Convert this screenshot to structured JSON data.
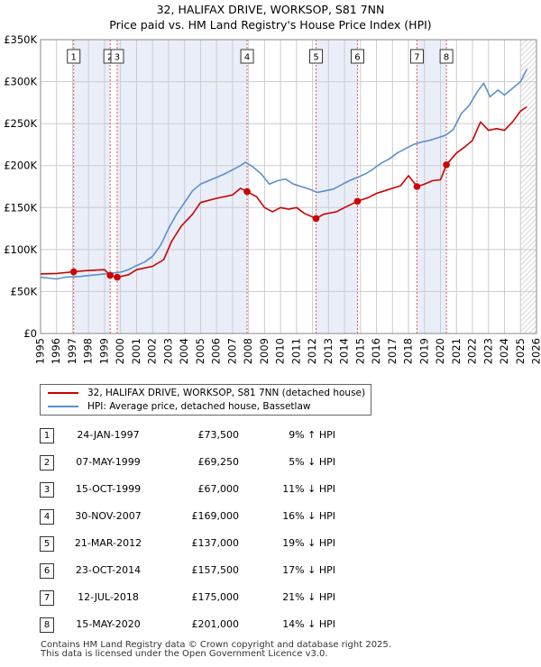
{
  "title_line1": "32, HALIFAX DRIVE, WORKSOP, S81 7NN",
  "title_line2": "Price paid vs. HM Land Registry's House Price Index (HPI)",
  "colors": {
    "property": "#cc0000",
    "hpi": "#5b8fd0",
    "shade": "#e9eef9",
    "grid": "#cccccc"
  },
  "legend": {
    "property": "32, HALIFAX DRIVE, WORKSOP, S81 7NN (detached house)",
    "hpi": "HPI: Average price, detached house, Bassetlaw"
  },
  "chart_data": {
    "type": "line",
    "xlim": [
      1995,
      2026
    ],
    "ylim": [
      0,
      350000
    ],
    "y_ticks": [
      0,
      50000,
      100000,
      150000,
      200000,
      250000,
      300000,
      350000
    ],
    "y_tick_labels": [
      "£0",
      "£50K",
      "£100K",
      "£150K",
      "£200K",
      "£250K",
      "£300K",
      "£350K"
    ],
    "x_ticks": [
      1995,
      1996,
      1997,
      1998,
      1999,
      2000,
      2001,
      2002,
      2003,
      2004,
      2005,
      2006,
      2007,
      2008,
      2009,
      2010,
      2011,
      2012,
      2013,
      2014,
      2015,
      2016,
      2017,
      2018,
      2019,
      2020,
      2021,
      2022,
      2023,
      2024,
      2025,
      2026
    ],
    "x_tick_labels": [
      "1995",
      "1996",
      "1997",
      "1998",
      "1999",
      "2000",
      "2001",
      "2002",
      "2003",
      "2004",
      "2005",
      "2006",
      "2007",
      "2008",
      "2009",
      "2010",
      "2011",
      "2012",
      "2013",
      "2014",
      "2015",
      "2016",
      "2017",
      "2018",
      "2019",
      "2020",
      "2021",
      "2022",
      "2023",
      "2024",
      "2025",
      "2026"
    ],
    "forecast_from": 2025.0,
    "shaded_ranges": [
      [
        1997.07,
        1999.35
      ],
      [
        1999.79,
        2007.91
      ],
      [
        2012.22,
        2014.81
      ],
      [
        2018.53,
        2020.37
      ]
    ],
    "series": [
      {
        "name": "32, HALIFAX DRIVE, WORKSOP, S81 7NN (detached house)",
        "points": [
          [
            1995.0,
            71000
          ],
          [
            1996.0,
            71500
          ],
          [
            1997.07,
            73500
          ],
          [
            1998.0,
            75000
          ],
          [
            1999.0,
            76000
          ],
          [
            1999.35,
            69250
          ],
          [
            1999.79,
            67000
          ],
          [
            2000.5,
            70000
          ],
          [
            2001.0,
            76000
          ],
          [
            2002.0,
            80000
          ],
          [
            2002.7,
            88000
          ],
          [
            2003.2,
            110000
          ],
          [
            2003.8,
            128000
          ],
          [
            2004.5,
            142000
          ],
          [
            2005.0,
            156000
          ],
          [
            2006.0,
            161000
          ],
          [
            2007.0,
            165000
          ],
          [
            2007.5,
            173000
          ],
          [
            2007.91,
            169000
          ],
          [
            2008.5,
            163000
          ],
          [
            2009.0,
            150000
          ],
          [
            2009.5,
            145000
          ],
          [
            2010.0,
            150000
          ],
          [
            2010.5,
            148000
          ],
          [
            2011.0,
            150000
          ],
          [
            2011.5,
            143000
          ],
          [
            2012.22,
            137000
          ],
          [
            2012.7,
            142000
          ],
          [
            2013.5,
            145000
          ],
          [
            2014.0,
            150000
          ],
          [
            2014.81,
            157500
          ],
          [
            2015.5,
            162000
          ],
          [
            2016.0,
            167000
          ],
          [
            2016.5,
            170000
          ],
          [
            2017.0,
            173000
          ],
          [
            2017.5,
            176000
          ],
          [
            2018.0,
            188000
          ],
          [
            2018.53,
            175000
          ],
          [
            2019.0,
            178000
          ],
          [
            2019.5,
            182000
          ],
          [
            2020.0,
            183000
          ],
          [
            2020.37,
            201000
          ],
          [
            2021.0,
            215000
          ],
          [
            2021.5,
            222000
          ],
          [
            2022.0,
            230000
          ],
          [
            2022.5,
            252000
          ],
          [
            2023.0,
            242000
          ],
          [
            2023.5,
            244000
          ],
          [
            2024.0,
            242000
          ],
          [
            2024.5,
            252000
          ],
          [
            2025.0,
            265000
          ],
          [
            2025.4,
            270000
          ]
        ]
      },
      {
        "name": "HPI: Average price, detached house, Bassetlaw",
        "points": [
          [
            1995.0,
            67000
          ],
          [
            1995.5,
            66000
          ],
          [
            1996.0,
            65000
          ],
          [
            1996.5,
            67000
          ],
          [
            1997.0,
            67500
          ],
          [
            1997.5,
            68000
          ],
          [
            1998.0,
            69000
          ],
          [
            1998.5,
            70000
          ],
          [
            1999.0,
            71000
          ],
          [
            1999.5,
            72000
          ],
          [
            2000.0,
            73000
          ],
          [
            2000.5,
            76000
          ],
          [
            2001.0,
            81000
          ],
          [
            2001.5,
            85000
          ],
          [
            2002.0,
            92000
          ],
          [
            2002.5,
            105000
          ],
          [
            2003.0,
            125000
          ],
          [
            2003.5,
            142000
          ],
          [
            2004.0,
            156000
          ],
          [
            2004.5,
            170000
          ],
          [
            2005.0,
            178000
          ],
          [
            2005.5,
            182000
          ],
          [
            2006.0,
            186000
          ],
          [
            2006.5,
            190000
          ],
          [
            2007.0,
            195000
          ],
          [
            2007.5,
            200000
          ],
          [
            2007.8,
            204000
          ],
          [
            2008.3,
            198000
          ],
          [
            2008.8,
            190000
          ],
          [
            2009.3,
            178000
          ],
          [
            2009.8,
            182000
          ],
          [
            2010.3,
            184000
          ],
          [
            2010.8,
            178000
          ],
          [
            2011.3,
            175000
          ],
          [
            2011.8,
            172000
          ],
          [
            2012.3,
            168000
          ],
          [
            2012.8,
            170000
          ],
          [
            2013.3,
            172000
          ],
          [
            2013.8,
            177000
          ],
          [
            2014.3,
            182000
          ],
          [
            2014.8,
            186000
          ],
          [
            2015.3,
            190000
          ],
          [
            2015.8,
            196000
          ],
          [
            2016.3,
            203000
          ],
          [
            2016.8,
            208000
          ],
          [
            2017.3,
            215000
          ],
          [
            2017.8,
            220000
          ],
          [
            2018.3,
            225000
          ],
          [
            2018.8,
            228000
          ],
          [
            2019.3,
            230000
          ],
          [
            2019.8,
            233000
          ],
          [
            2020.3,
            236000
          ],
          [
            2020.8,
            243000
          ],
          [
            2021.3,
            262000
          ],
          [
            2021.8,
            272000
          ],
          [
            2022.3,
            288000
          ],
          [
            2022.7,
            298000
          ],
          [
            2023.1,
            282000
          ],
          [
            2023.6,
            290000
          ],
          [
            2024.0,
            284000
          ],
          [
            2024.5,
            292000
          ],
          [
            2025.0,
            300000
          ],
          [
            2025.4,
            315000
          ]
        ]
      }
    ],
    "sales": [
      {
        "label": "1",
        "x": 1997.07,
        "price": 73500
      },
      {
        "label": "2",
        "x": 1999.35,
        "price": 69250
      },
      {
        "label": "3",
        "x": 1999.79,
        "price": 67000
      },
      {
        "label": "4",
        "x": 2007.91,
        "price": 169000
      },
      {
        "label": "5",
        "x": 2012.22,
        "price": 137000
      },
      {
        "label": "6",
        "x": 2014.81,
        "price": 157500
      },
      {
        "label": "7",
        "x": 2018.53,
        "price": 175000
      },
      {
        "label": "8",
        "x": 2020.37,
        "price": 201000
      }
    ]
  },
  "transactions": [
    {
      "num": "1",
      "date": "24-JAN-1997",
      "price": "£73,500",
      "hpi": "9% ↑ HPI"
    },
    {
      "num": "2",
      "date": "07-MAY-1999",
      "price": "£69,250",
      "hpi": "5% ↓ HPI"
    },
    {
      "num": "3",
      "date": "15-OCT-1999",
      "price": "£67,000",
      "hpi": "11% ↓ HPI"
    },
    {
      "num": "4",
      "date": "30-NOV-2007",
      "price": "£169,000",
      "hpi": "16% ↓ HPI"
    },
    {
      "num": "5",
      "date": "21-MAR-2012",
      "price": "£137,000",
      "hpi": "19% ↓ HPI"
    },
    {
      "num": "6",
      "date": "23-OCT-2014",
      "price": "£157,500",
      "hpi": "17% ↓ HPI"
    },
    {
      "num": "7",
      "date": "12-JUL-2018",
      "price": "£175,000",
      "hpi": "21% ↓ HPI"
    },
    {
      "num": "8",
      "date": "15-MAY-2020",
      "price": "£201,000",
      "hpi": "14% ↓ HPI"
    }
  ],
  "footer_line1": "Contains HM Land Registry data © Crown copyright and database right 2025.",
  "footer_line2": "This data is licensed under the Open Government Licence v3.0."
}
